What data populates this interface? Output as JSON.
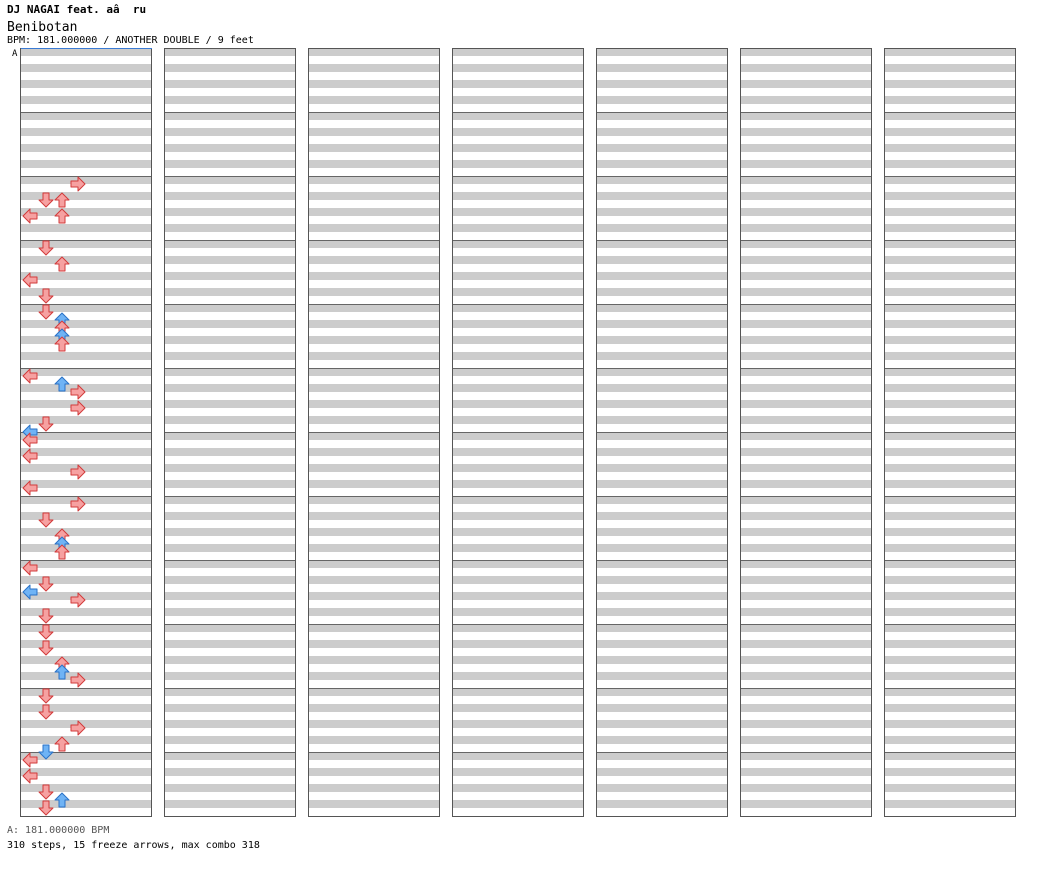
{
  "header": {
    "artist": "DJ NAGAI feat. aâ  ru",
    "title": "Benibotan",
    "meta": "BPM: 181.000000 / ANOTHER DOUBLE / 9 feet",
    "segment_mark": "A"
  },
  "footer": {
    "bpm_line": "A: 181.000000 BPM",
    "stats": "310 steps, 15 freeze arrows, max combo 318"
  },
  "chart_data": {
    "type": "step-chart",
    "style": "double",
    "lanes": [
      "P1-left",
      "P1-down",
      "P1-up",
      "P1-right",
      "P2-left",
      "P2-down",
      "P2-up",
      "P2-right"
    ],
    "columns": 7,
    "measures_per_column": 12,
    "arrow_colors": {
      "quarter": "#f6a1a1",
      "eighth": "#6fb3f5",
      "freeze": "#b6f0b6"
    },
    "steps": 310,
    "freeze_arrows": 15,
    "max_combo": 318,
    "notes": [
      {
        "b": 8,
        "l": "R",
        "c": "q"
      },
      {
        "b": 9,
        "l": "D",
        "c": "q"
      },
      {
        "b": 9,
        "l": "U",
        "c": "q"
      },
      {
        "b": 10,
        "l": "L",
        "c": "q"
      },
      {
        "b": 10,
        "l": "U",
        "c": "q"
      },
      {
        "b": 12,
        "l": "D",
        "c": "q"
      },
      {
        "b": 13,
        "l": "U",
        "c": "q"
      },
      {
        "b": 14,
        "l": "L",
        "c": "q"
      },
      {
        "b": 15,
        "l": "D",
        "c": "q"
      },
      {
        "b": 16,
        "l": "D",
        "c": "q"
      },
      {
        "b": 16.5,
        "l": "U",
        "c": "e"
      },
      {
        "b": 17,
        "l": "U",
        "c": "q"
      },
      {
        "b": 17.5,
        "l": "U",
        "c": "e"
      },
      {
        "b": 18,
        "l": "U",
        "c": "q"
      },
      {
        "b": 20,
        "l": "L",
        "c": "q"
      },
      {
        "b": 20.5,
        "l": "U",
        "c": "e"
      },
      {
        "b": 21,
        "l": "R",
        "c": "q"
      },
      {
        "b": 22,
        "l": "R",
        "c": "q"
      },
      {
        "b": 23,
        "l": "D",
        "c": "q"
      },
      {
        "b": 23.5,
        "l": "L",
        "c": "e"
      },
      {
        "b": 24,
        "l": "L",
        "c": "q"
      },
      {
        "b": 25,
        "l": "L",
        "c": "q"
      },
      {
        "b": 26,
        "l": "R",
        "c": "q"
      },
      {
        "b": 27,
        "l": "L",
        "c": "q"
      },
      {
        "b": 28,
        "l": "R",
        "c": "q"
      },
      {
        "b": 29,
        "l": "D",
        "c": "q"
      },
      {
        "b": 30,
        "l": "U",
        "c": "q"
      },
      {
        "b": 30.5,
        "l": "U",
        "c": "e"
      },
      {
        "b": 31,
        "l": "U",
        "c": "q"
      },
      {
        "b": 32,
        "l": "L",
        "c": "q"
      },
      {
        "b": 33,
        "l": "D",
        "c": "q"
      },
      {
        "b": 33.5,
        "l": "L",
        "c": "e"
      },
      {
        "b": 34,
        "l": "R",
        "c": "q"
      },
      {
        "b": 35,
        "l": "D",
        "c": "q"
      },
      {
        "b": 36,
        "l": "D",
        "c": "q"
      },
      {
        "b": 37,
        "l": "D",
        "c": "q"
      },
      {
        "b": 38,
        "l": "U",
        "c": "q"
      },
      {
        "b": 38.5,
        "l": "U",
        "c": "e"
      },
      {
        "b": 39,
        "l": "R",
        "c": "q"
      },
      {
        "b": 40,
        "l": "D",
        "c": "q"
      },
      {
        "b": 41,
        "l": "D",
        "c": "q"
      },
      {
        "b": 42,
        "l": "R",
        "c": "q"
      },
      {
        "b": 43,
        "l": "U",
        "c": "q"
      },
      {
        "b": 43.5,
        "l": "D",
        "c": "e"
      },
      {
        "b": 44,
        "l": "L",
        "c": "q"
      },
      {
        "b": 45,
        "l": "L",
        "c": "q"
      },
      {
        "b": 46,
        "l": "D",
        "c": "q"
      },
      {
        "b": 46.5,
        "l": "U",
        "c": "e"
      },
      {
        "b": 47,
        "l": "D",
        "c": "q"
      }
    ]
  }
}
